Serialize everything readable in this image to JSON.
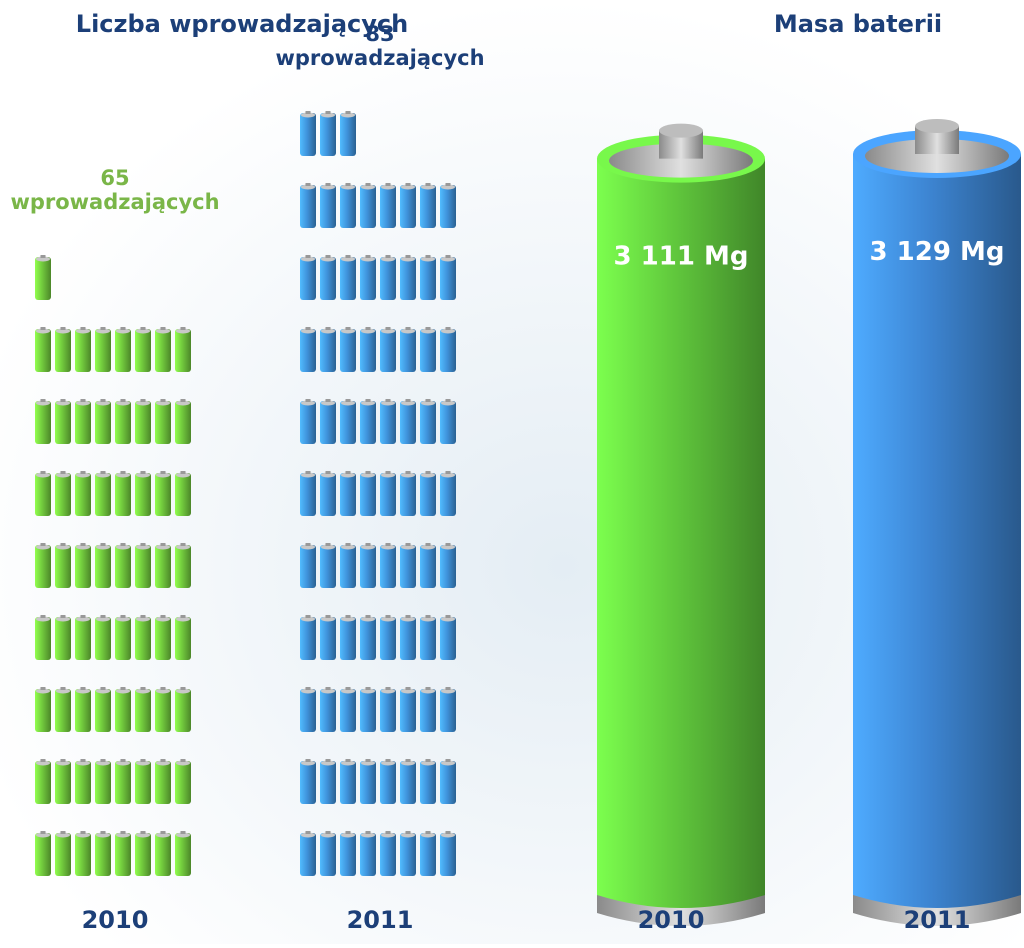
{
  "chart_data": [
    {
      "type": "pictogram",
      "title": "Liczba wprowadzających",
      "categories": [
        "2010",
        "2011"
      ],
      "values": [
        65,
        83
      ],
      "value_labels": [
        "65 wprowadzających",
        "83 wprowadzających"
      ],
      "colors": [
        "#6cbf3a",
        "#3c8bd0"
      ],
      "label_colors": [
        "#7ab648",
        "#1c3f78"
      ]
    },
    {
      "type": "battery",
      "title": "Masa baterii",
      "categories": [
        "2010",
        "2011"
      ],
      "values": [
        3111,
        3129
      ],
      "value_labels": [
        "3 111 Mg",
        "3 129 Mg"
      ],
      "colors": [
        "#5cbf3a",
        "#3a7fc8"
      ]
    }
  ]
}
